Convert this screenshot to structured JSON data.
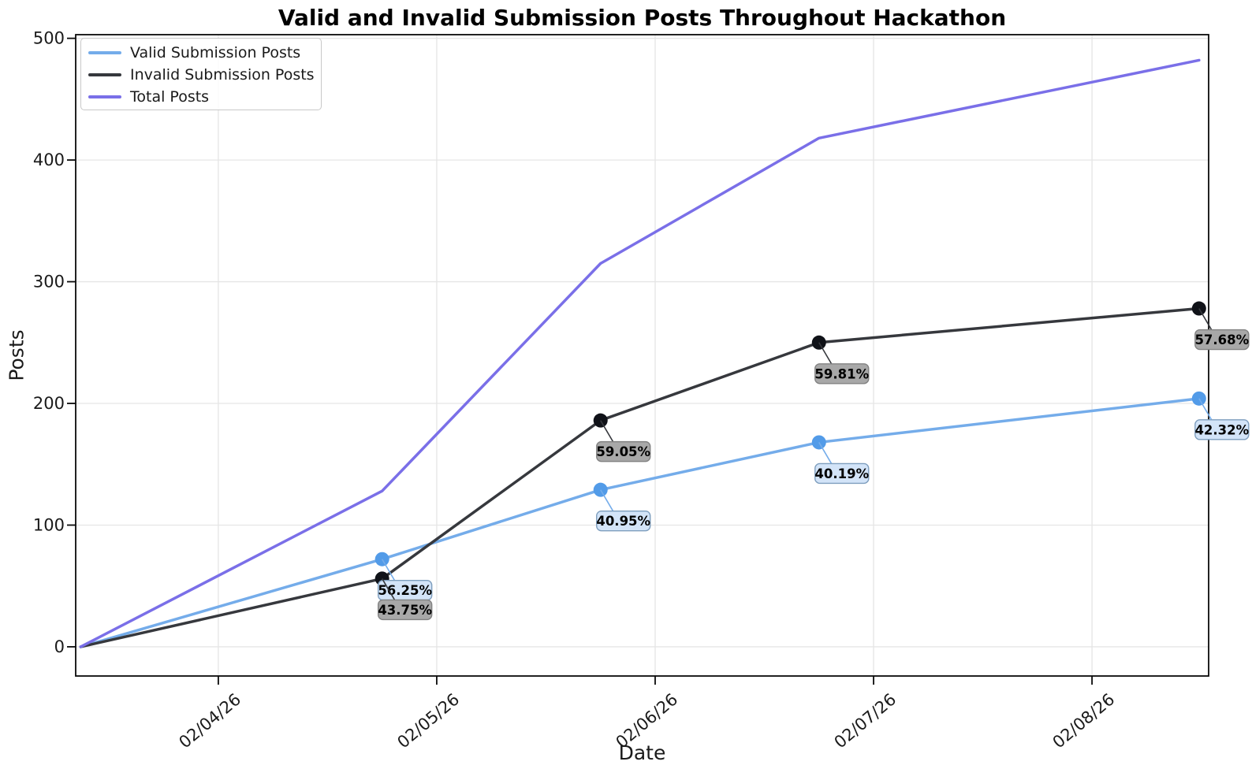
{
  "chart_data": {
    "type": "line",
    "title": "Valid and Invalid Submission Posts Throughout Hackathon",
    "xlabel": "Date",
    "ylabel": "Posts",
    "grid": true,
    "legend_position": "upper left",
    "x_unit": "days, integer n aligns with x tick n (02/04/26 = 1)",
    "xlim": [
      0.347,
      5.534
    ],
    "ylim": [
      -24,
      503
    ],
    "x_ticks": [
      1,
      2,
      3,
      4,
      5
    ],
    "x_tick_labels": [
      "02/04/26",
      "02/05/26",
      "02/06/26",
      "02/07/26",
      "02/08/26"
    ],
    "y_ticks": [
      0,
      100,
      200,
      300,
      400,
      500
    ],
    "x": [
      0.37,
      1.75,
      2.75,
      3.75,
      5.49
    ],
    "series": [
      {
        "name": "Valid Submission Posts",
        "color": "#74ACEA",
        "marker_color": "#529BE8",
        "markers": true,
        "values": [
          0,
          72,
          129,
          168,
          204
        ],
        "annotation_style": {
          "fill": "#D3E4F8",
          "stroke": "#7E9EBE"
        },
        "annotations": [
          {
            "x_index": 1,
            "label": "56.25%"
          },
          {
            "x_index": 2,
            "label": "40.95%"
          },
          {
            "x_index": 3,
            "label": "40.19%"
          },
          {
            "x_index": 4,
            "label": "42.32%"
          }
        ]
      },
      {
        "name": "Invalid Submission Posts",
        "color": "#36383D",
        "marker_color": "#101218",
        "markers": true,
        "values": [
          0,
          56,
          186,
          250,
          278
        ],
        "annotation_style": {
          "fill": "#A8A8A8",
          "stroke": "#828282"
        },
        "annotations": [
          {
            "x_index": 1,
            "label": "43.75%"
          },
          {
            "x_index": 2,
            "label": "59.05%"
          },
          {
            "x_index": 3,
            "label": "59.81%"
          },
          {
            "x_index": 4,
            "label": "57.68%"
          }
        ]
      },
      {
        "name": "Total Posts",
        "color": "#7A6FE8",
        "markers": false,
        "values": [
          0,
          128,
          315,
          418,
          482
        ],
        "annotations": []
      }
    ],
    "style": {
      "background": "#ffffff",
      "grid_color": "#e5e5e5",
      "spine_color": "#0a0a0a",
      "tick_label_color": "#1a1a1a",
      "annotation_text_color": "#000000"
    }
  }
}
